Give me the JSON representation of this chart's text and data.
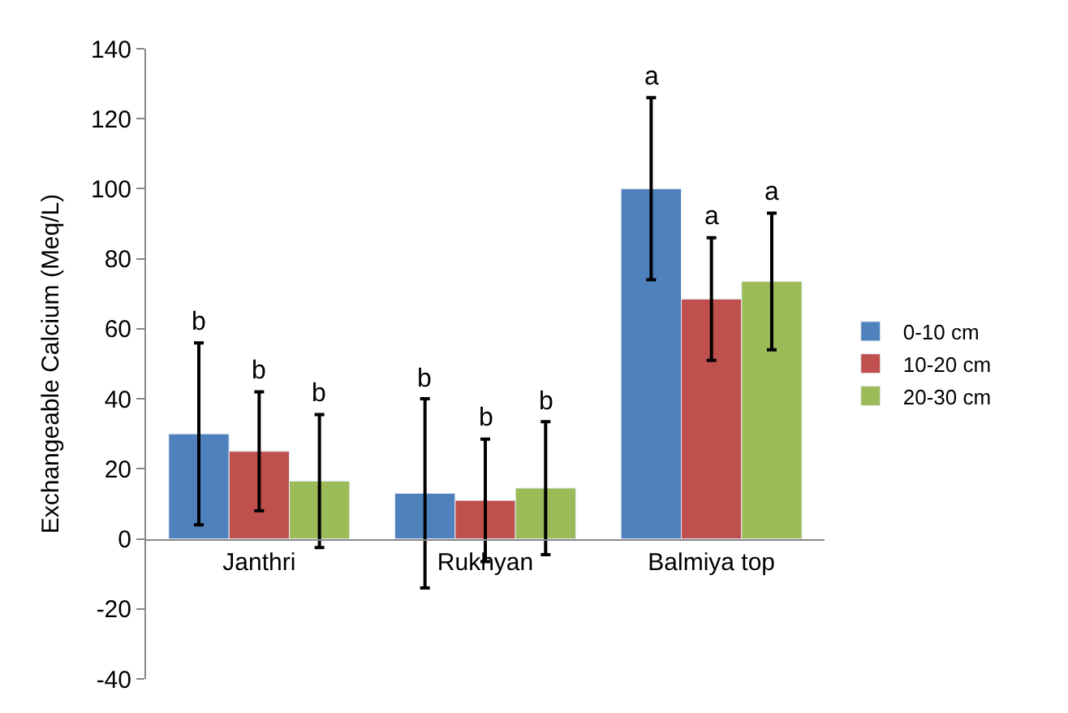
{
  "chart_data": {
    "type": "bar",
    "ylabel": "Exchangeable Calcium (Meq/L)",
    "categories": [
      "Janthri",
      "Rukhyan",
      "Balmiya top"
    ],
    "series": [
      {
        "name": "0-10 cm",
        "color": "#4f81bd",
        "values": [
          30,
          13,
          100
        ],
        "errors": [
          26,
          27,
          26
        ]
      },
      {
        "name": "10-20 cm",
        "color": "#c0504d",
        "values": [
          25,
          11,
          68.5
        ],
        "errors": [
          17,
          17.5,
          17.5
        ]
      },
      {
        "name": "20-30 cm",
        "color": "#9bbb59",
        "values": [
          16.5,
          14.5,
          73.5
        ],
        "errors": [
          19,
          19,
          19.5
        ]
      }
    ],
    "ylim": [
      -40,
      140
    ],
    "yticks": [
      -40,
      -20,
      0,
      20,
      40,
      60,
      80,
      100,
      120,
      140
    ],
    "legend": "right",
    "annotations": [
      "b",
      "b",
      "b",
      "b",
      "b",
      "b",
      "a",
      "a",
      "a"
    ]
  }
}
